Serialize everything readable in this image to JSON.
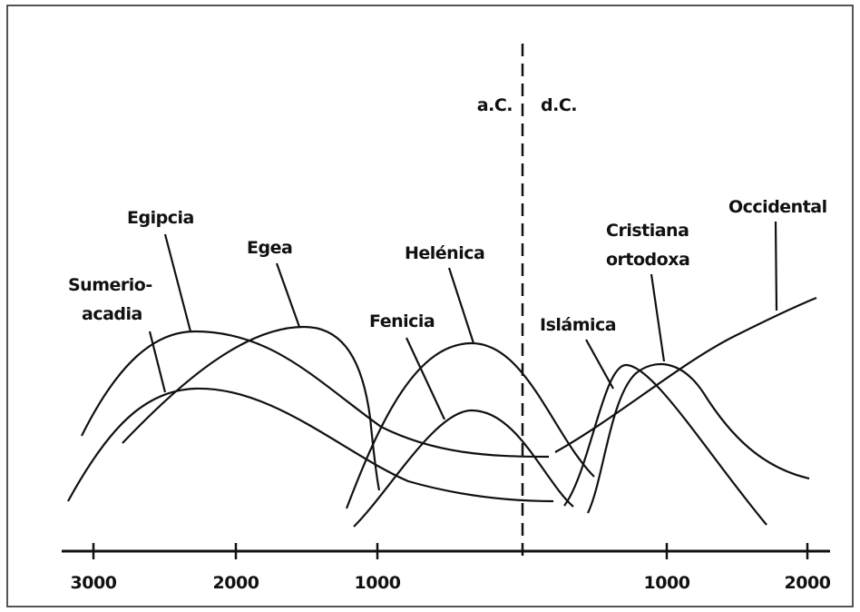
{
  "era_labels": {
    "bc": "a.C.",
    "ad": "d.C."
  },
  "axis": {
    "ticks": [
      "3000",
      "2000",
      "1000",
      "1000",
      "2000"
    ]
  },
  "civilizations": [
    {
      "lines": [
        "Sumerio-",
        "acadia"
      ]
    },
    {
      "lines": [
        "Egipcia"
      ]
    },
    {
      "lines": [
        "Egea"
      ]
    },
    {
      "lines": [
        "Helénica"
      ]
    },
    {
      "lines": [
        "Fenicia"
      ]
    },
    {
      "lines": [
        "Islámica"
      ]
    },
    {
      "lines": [
        "Cristiana",
        "ortodoxa"
      ]
    },
    {
      "lines": [
        "Occidental"
      ]
    }
  ]
}
